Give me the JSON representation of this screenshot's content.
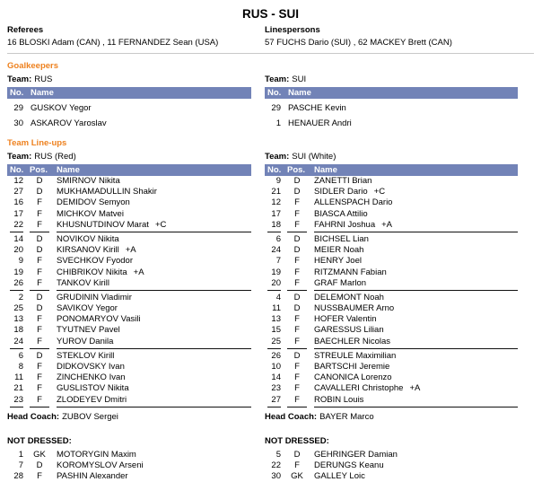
{
  "title": "RUS - SUI",
  "colors": {
    "section_header": "#ee8220",
    "table_header_bg": "#7283b7",
    "table_header_text": "#ffffff"
  },
  "officials": {
    "referees_label": "Referees",
    "referees": "16 BLOSKI Adam (CAN) , 11 FERNANDEZ Sean (USA)",
    "linespersons_label": "Linespersons",
    "linespersons": "57 FUCHS Dario (SUI) , 62 MACKEY Brett (CAN)"
  },
  "sections": {
    "goalkeepers_label": "Goalkeepers",
    "lineups_label": "Team Line-ups",
    "team_label": "Team:",
    "head_coach_label": "Head Coach:",
    "not_dressed_label": "NOT DRESSED:"
  },
  "goalkeepers": {
    "columns": {
      "no": "No.",
      "name": "Name"
    },
    "rus": {
      "team": "RUS",
      "rows": [
        {
          "no": "29",
          "name": "GUSKOV Yegor"
        },
        {
          "no": "30",
          "name": "ASKAROV Yaroslav"
        }
      ]
    },
    "sui": {
      "team": "SUI",
      "rows": [
        {
          "no": "29",
          "name": "PASCHE Kevin"
        },
        {
          "no": "1",
          "name": "HENAUER Andri"
        }
      ]
    }
  },
  "lineups": {
    "columns": {
      "no": "No.",
      "pos": "Pos.",
      "name": "Name"
    },
    "rus": {
      "team": "RUS (Red)",
      "head_coach": "ZUBOV Sergei",
      "groups": [
        [
          {
            "no": "12",
            "pos": "D",
            "name": "SMIRNOV Nikita",
            "mark": ""
          },
          {
            "no": "27",
            "pos": "D",
            "name": "MUKHAMADULLIN Shakir",
            "mark": ""
          },
          {
            "no": "16",
            "pos": "F",
            "name": "DEMIDOV Semyon",
            "mark": ""
          },
          {
            "no": "17",
            "pos": "F",
            "name": "MICHKOV Matvei",
            "mark": ""
          },
          {
            "no": "22",
            "pos": "F",
            "name": "KHUSNUTDINOV Marat",
            "mark": "+C"
          }
        ],
        [
          {
            "no": "14",
            "pos": "D",
            "name": "NOVIKOV Nikita",
            "mark": ""
          },
          {
            "no": "20",
            "pos": "D",
            "name": "KIRSANOV Kirill",
            "mark": "+A"
          },
          {
            "no": "9",
            "pos": "F",
            "name": "SVECHKOV Fyodor",
            "mark": ""
          },
          {
            "no": "19",
            "pos": "F",
            "name": "CHIBRIKOV Nikita",
            "mark": "+A"
          },
          {
            "no": "26",
            "pos": "F",
            "name": "TANKOV Kirill",
            "mark": ""
          }
        ],
        [
          {
            "no": "2",
            "pos": "D",
            "name": "GRUDININ Vladimir",
            "mark": ""
          },
          {
            "no": "25",
            "pos": "D",
            "name": "SAVIKOV Yegor",
            "mark": ""
          },
          {
            "no": "13",
            "pos": "F",
            "name": "PONOMARYOV Vasili",
            "mark": ""
          },
          {
            "no": "18",
            "pos": "F",
            "name": "TYUTNEV Pavel",
            "mark": ""
          },
          {
            "no": "24",
            "pos": "F",
            "name": "YUROV Danila",
            "mark": ""
          }
        ],
        [
          {
            "no": "6",
            "pos": "D",
            "name": "STEKLOV Kirill",
            "mark": ""
          },
          {
            "no": "8",
            "pos": "F",
            "name": "DIDKOVSKY Ivan",
            "mark": ""
          },
          {
            "no": "11",
            "pos": "F",
            "name": "ZINCHENKO Ivan",
            "mark": ""
          },
          {
            "no": "21",
            "pos": "F",
            "name": "GUSLISTOV Nikita",
            "mark": ""
          },
          {
            "no": "23",
            "pos": "F",
            "name": "ZLODEYEV Dmitri",
            "mark": ""
          }
        ]
      ],
      "not_dressed": [
        {
          "no": "1",
          "pos": "GK",
          "name": "MOTORYGIN Maxim",
          "mark": ""
        },
        {
          "no": "7",
          "pos": "D",
          "name": "KOROMYSLOV Arseni",
          "mark": ""
        },
        {
          "no": "28",
          "pos": "F",
          "name": "PASHIN Alexander",
          "mark": ""
        }
      ]
    },
    "sui": {
      "team": "SUI (White)",
      "head_coach": "BAYER Marco",
      "groups": [
        [
          {
            "no": "9",
            "pos": "D",
            "name": "ZANETTI Brian",
            "mark": ""
          },
          {
            "no": "21",
            "pos": "D",
            "name": "SIDLER Dario",
            "mark": "+C"
          },
          {
            "no": "12",
            "pos": "F",
            "name": "ALLENSPACH Dario",
            "mark": ""
          },
          {
            "no": "17",
            "pos": "F",
            "name": "BIASCA Attilio",
            "mark": ""
          },
          {
            "no": "18",
            "pos": "F",
            "name": "FAHRNI Joshua",
            "mark": "+A"
          }
        ],
        [
          {
            "no": "6",
            "pos": "D",
            "name": "BICHSEL Lian",
            "mark": ""
          },
          {
            "no": "24",
            "pos": "D",
            "name": "MEIER Noah",
            "mark": ""
          },
          {
            "no": "7",
            "pos": "F",
            "name": "HENRY Joel",
            "mark": ""
          },
          {
            "no": "19",
            "pos": "F",
            "name": "RITZMANN Fabian",
            "mark": ""
          },
          {
            "no": "20",
            "pos": "F",
            "name": "GRAF Marlon",
            "mark": ""
          }
        ],
        [
          {
            "no": "4",
            "pos": "D",
            "name": "DELEMONT Noah",
            "mark": ""
          },
          {
            "no": "11",
            "pos": "D",
            "name": "NUSSBAUMER Arno",
            "mark": ""
          },
          {
            "no": "13",
            "pos": "F",
            "name": "HOFER Valentin",
            "mark": ""
          },
          {
            "no": "15",
            "pos": "F",
            "name": "GARESSUS Lilian",
            "mark": ""
          },
          {
            "no": "25",
            "pos": "F",
            "name": "BAECHLER Nicolas",
            "mark": ""
          }
        ],
        [
          {
            "no": "26",
            "pos": "D",
            "name": "STREULE Maximilian",
            "mark": ""
          },
          {
            "no": "10",
            "pos": "F",
            "name": "BARTSCHI Jeremie",
            "mark": ""
          },
          {
            "no": "14",
            "pos": "F",
            "name": "CANONICA Lorenzo",
            "mark": ""
          },
          {
            "no": "23",
            "pos": "F",
            "name": "CAVALLERI Christophe",
            "mark": "+A"
          },
          {
            "no": "27",
            "pos": "F",
            "name": "ROBIN Louis",
            "mark": ""
          }
        ]
      ],
      "not_dressed": [
        {
          "no": "5",
          "pos": "D",
          "name": "GEHRINGER Damian",
          "mark": ""
        },
        {
          "no": "22",
          "pos": "F",
          "name": "DERUNGS Keanu",
          "mark": ""
        },
        {
          "no": "30",
          "pos": "GK",
          "name": "GALLEY Loic",
          "mark": ""
        }
      ]
    }
  }
}
